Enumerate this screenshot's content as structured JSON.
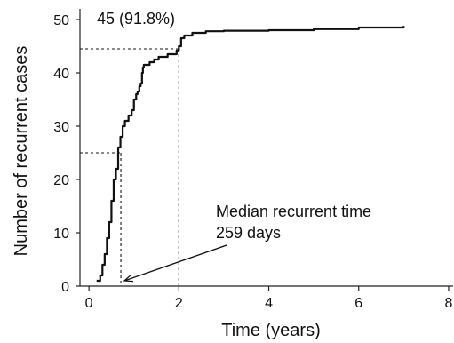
{
  "chart_data": {
    "type": "line",
    "title": "",
    "xlabel": "Time (years)",
    "ylabel": "Number of recurrent cases",
    "xlim": [
      -0.2,
      8.1
    ],
    "ylim": [
      0,
      52
    ],
    "x_ticks": [
      0,
      2,
      4,
      6,
      8
    ],
    "y_ticks": [
      0,
      10,
      20,
      30,
      40,
      50
    ],
    "grid": false,
    "legend": "none",
    "series": [
      {
        "x": [
          0.17,
          0.25,
          0.3,
          0.35,
          0.4,
          0.45,
          0.5,
          0.55,
          0.6,
          0.65,
          0.7,
          0.75,
          0.8,
          0.88,
          0.95,
          1.0,
          1.05,
          1.08,
          1.12,
          1.15,
          1.18,
          1.2,
          1.22,
          1.35,
          1.45,
          1.55,
          1.75,
          1.95,
          2.0,
          2.05,
          2.12,
          2.3,
          2.6,
          3.0,
          4.0,
          5.0,
          6.0,
          7.0
        ],
        "y": [
          1,
          2,
          4,
          6,
          9,
          12,
          16,
          20,
          22,
          26,
          28,
          30,
          31,
          32,
          33,
          35,
          36,
          36.5,
          37.5,
          38,
          40,
          41,
          41.5,
          42,
          42.5,
          43,
          43.5,
          44.2,
          45,
          46.5,
          47,
          47.5,
          47.8,
          47.9,
          48,
          48.2,
          48.5,
          48.8
        ]
      }
    ],
    "reference_lines": [
      {
        "y": 25,
        "x": 0.71
      },
      {
        "y": 44.5,
        "x": 2.0
      }
    ],
    "annotations": {
      "top_label": "45 (91.8%)",
      "median_line1": "Median recurrent time",
      "median_line2": "259 days",
      "arrow_target": {
        "x": 0.71,
        "y": 0
      }
    }
  }
}
